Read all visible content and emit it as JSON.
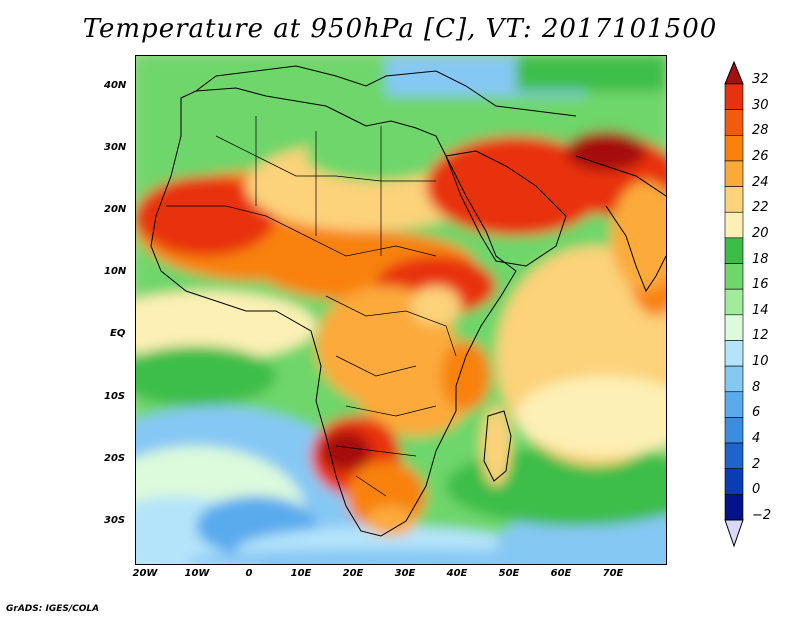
{
  "title": "Temperature at 950hPa [C], VT: 2017101500",
  "credit": "GrADS: IGES/COLA",
  "lat_labels": [
    "40N",
    "30N",
    "20N",
    "10N",
    "EQ",
    "10S",
    "20S",
    "30S"
  ],
  "lon_labels": [
    "20W",
    "10W",
    "0",
    "10E",
    "20E",
    "30E",
    "40E",
    "50E",
    "60E",
    "70E"
  ],
  "colorbar": {
    "levels": [
      "32",
      "30",
      "28",
      "26",
      "24",
      "22",
      "20",
      "18",
      "16",
      "14",
      "12",
      "10",
      "8",
      "6",
      "4",
      "2",
      "0",
      "−2"
    ],
    "colors": [
      "#a50f0f",
      "#e8320f",
      "#f45a0c",
      "#f8820c",
      "#fbaa3a",
      "#fcd27a",
      "#fdf0b4",
      "#3cbd48",
      "#6ed66a",
      "#a0ec9c",
      "#dcfadc",
      "#b4e4fa",
      "#86c8f4",
      "#5aaaee",
      "#3c8ce0",
      "#1e64cc",
      "#0a3cb4",
      "#06128a",
      "#d8d8f8"
    ]
  },
  "map_colors": {
    "ocean_cool": "#6fb0ee",
    "ocean_mid": "#b4e4fa",
    "ocean_green": "#3cbd48",
    "land_warm": "#f8820c",
    "land_hot": "#e8320f",
    "desert_mild": "#fcd27a",
    "coast_line": "#000000"
  }
}
